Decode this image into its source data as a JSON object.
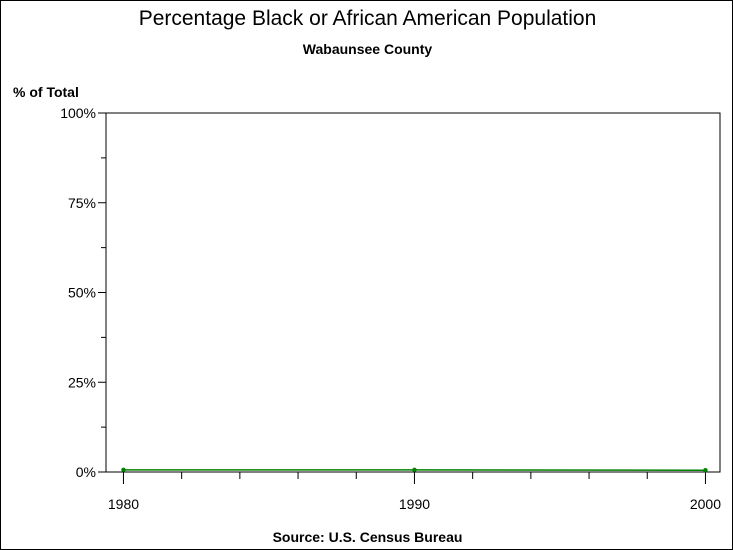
{
  "chart_data": {
    "type": "line",
    "title": "Percentage Black or African American Population",
    "subtitle": "Wabaunsee County",
    "ylabel": "% of Total",
    "xlabel": "",
    "source": "Source: U.S. Census Bureau",
    "x": [
      1980,
      1990,
      2000
    ],
    "series": [
      {
        "name": "Black or African American",
        "values": [
          0.6,
          0.6,
          0.5
        ],
        "color": "#008000"
      }
    ],
    "xticks": [
      1980,
      1990,
      2000
    ],
    "xtick_labels": [
      "1980",
      "1990",
      "2000"
    ],
    "yticks": [
      0,
      25,
      50,
      75,
      100
    ],
    "ytick_labels": [
      "0%",
      "25%",
      "50%",
      "75%",
      "100%"
    ],
    "ylim": [
      0,
      100
    ],
    "xlim": [
      1979.4,
      2000.5
    ],
    "grid": false
  }
}
